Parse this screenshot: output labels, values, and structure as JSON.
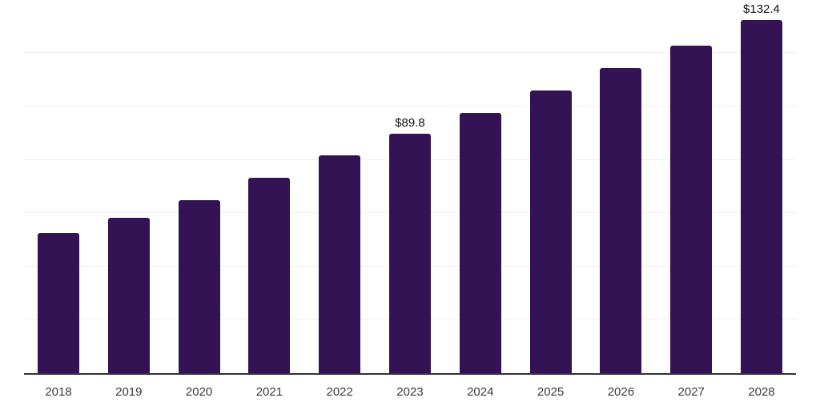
{
  "colors": {
    "bar": "#331353",
    "axis_line": "#333333",
    "gridline": "#f0f0f0",
    "tick_label": "#3a3a3a",
    "value_label": "#111111",
    "background": "#ffffff"
  },
  "chart_data": {
    "type": "bar",
    "title": "",
    "xlabel": "",
    "ylabel": "",
    "categories": [
      "2018",
      "2019",
      "2020",
      "2021",
      "2022",
      "2023",
      "2024",
      "2025",
      "2026",
      "2027",
      "2028"
    ],
    "values": [
      52.5,
      58.3,
      64.9,
      73.4,
      81.6,
      89.8,
      97.6,
      105.9,
      114.4,
      122.9,
      132.4
    ],
    "value_labels": [
      "",
      "",
      "",
      "",
      "",
      "$89.8",
      "",
      "",
      "",
      "",
      "$132.4"
    ],
    "ylim": [
      0,
      140.5
    ],
    "grid": true,
    "grid_values": [
      20,
      40,
      60,
      80,
      100,
      120,
      140
    ],
    "y_tick_labels_shown": false,
    "legend": false,
    "currency_prefix": "$"
  }
}
